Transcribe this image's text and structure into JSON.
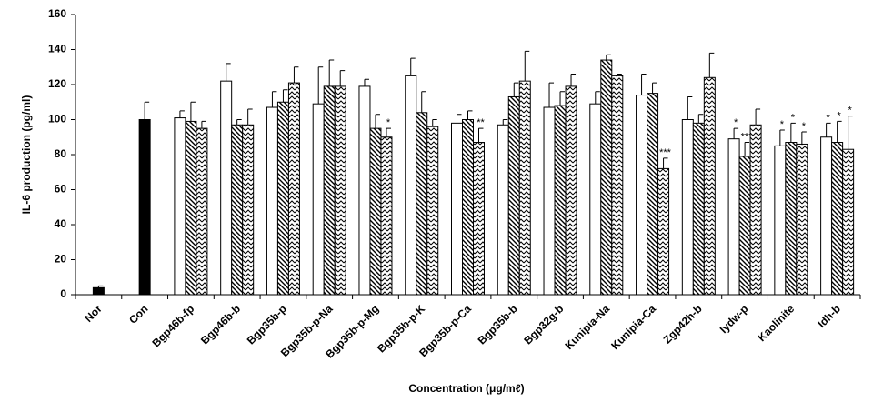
{
  "chart_data": {
    "type": "bar",
    "y_label": "IL-6 production  (pg/ml)",
    "x_label": "Concentration  (μg/mℓ)",
    "categories": [
      "Nor",
      "Con",
      "Bgp46b-fp",
      "Bgp46b-b",
      "Bgp35b-p",
      "Bgp35b-p-Na",
      "Bgp35b-p-Mg",
      "Bgp35b-p-K",
      "Bgp35b-p-Ca",
      "Bgp35b-b",
      "Bgp32g-b",
      "Kunipia-Na",
      "Kunipia-Ca",
      "Zgp42h-b",
      "Iydw-p",
      "Kaolinite",
      "Idh-b"
    ],
    "series": [
      {
        "color": "#000000",
        "pattern": "solid",
        "values": [
          4,
          100,
          null,
          null,
          null,
          null,
          null,
          null,
          null,
          null,
          null,
          null,
          null,
          null,
          null,
          null,
          null
        ],
        "errors": [
          1,
          10,
          null,
          null,
          null,
          null,
          null,
          null,
          null,
          null,
          null,
          null,
          null,
          null,
          null,
          null,
          null
        ],
        "significance": [
          null,
          null,
          null,
          null,
          null,
          null,
          null,
          null,
          null,
          null,
          null,
          null,
          null,
          null,
          null,
          null,
          null
        ]
      },
      {
        "color": "#ffffff",
        "pattern": "none",
        "values": [
          null,
          null,
          101,
          122,
          107,
          109,
          119,
          125,
          98,
          97,
          107,
          109,
          114,
          100,
          89,
          85,
          90
        ],
        "errors": [
          null,
          null,
          4,
          10,
          9,
          21,
          4,
          10,
          5,
          3,
          14,
          7,
          12,
          13,
          6,
          9,
          8
        ],
        "significance": [
          null,
          null,
          null,
          null,
          null,
          null,
          null,
          null,
          null,
          null,
          null,
          null,
          null,
          null,
          "*",
          "*",
          "*"
        ]
      },
      {
        "color": "#ffffff",
        "pattern": "hatch",
        "values": [
          null,
          null,
          99,
          97,
          110,
          119,
          95,
          104,
          100,
          113,
          108,
          134,
          115,
          98,
          79,
          87,
          87
        ],
        "errors": [
          null,
          null,
          11,
          3,
          7,
          15,
          8,
          12,
          5,
          8,
          8,
          3,
          6,
          5,
          8,
          11,
          12
        ],
        "significance": [
          null,
          null,
          null,
          null,
          null,
          null,
          null,
          null,
          null,
          null,
          null,
          null,
          null,
          null,
          "***",
          "*",
          "*"
        ]
      },
      {
        "color": "#ffffff",
        "pattern": "zigzag",
        "values": [
          null,
          null,
          95,
          97,
          121,
          119,
          90,
          96,
          87,
          122,
          119,
          125,
          72,
          124,
          97,
          86,
          83
        ],
        "errors": [
          null,
          null,
          4,
          9,
          9,
          9,
          5,
          4,
          8,
          17,
          7,
          1,
          6,
          14,
          9,
          7,
          19
        ],
        "significance": [
          null,
          null,
          null,
          null,
          null,
          null,
          "*",
          null,
          "**",
          null,
          null,
          null,
          "***",
          null,
          null,
          "*",
          "*"
        ]
      }
    ],
    "ylim": [
      0,
      160
    ],
    "yticks": [
      0,
      20,
      40,
      60,
      80,
      100,
      120,
      140,
      160
    ],
    "grid": false
  }
}
